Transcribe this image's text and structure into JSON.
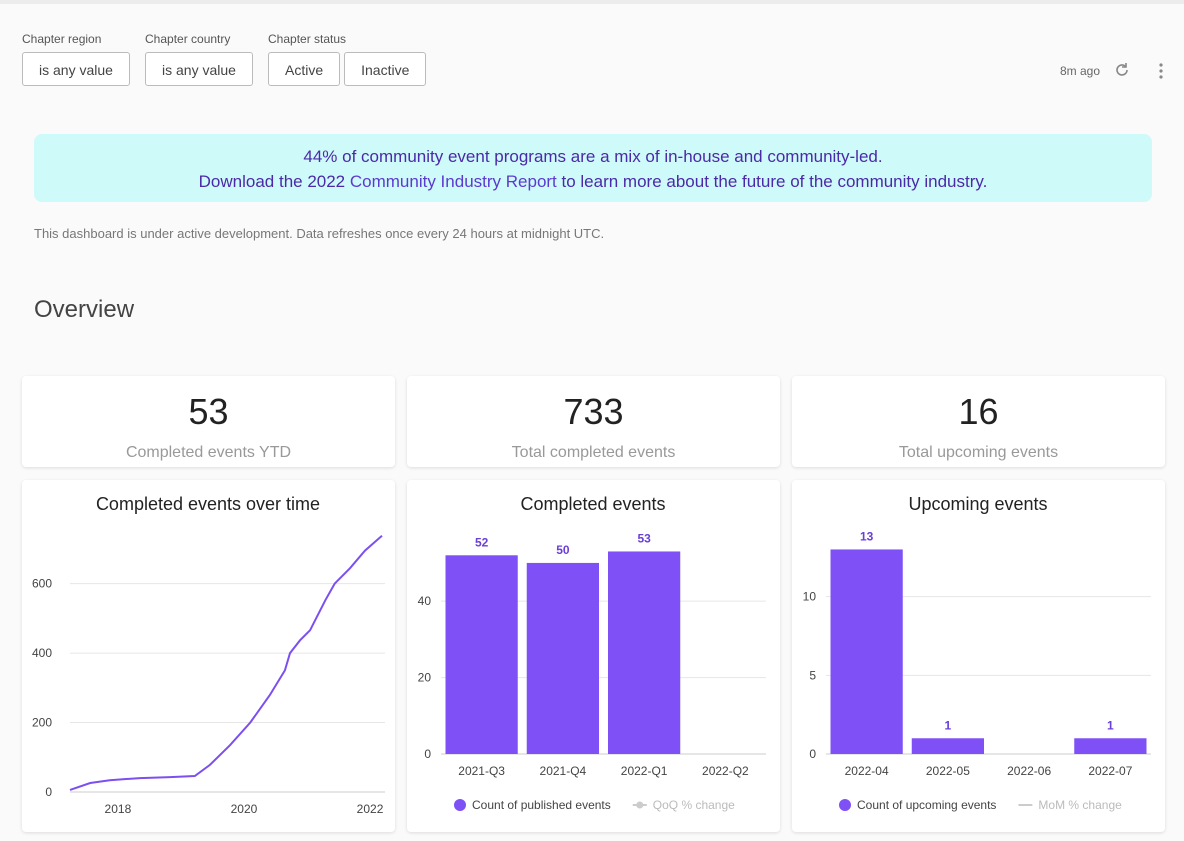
{
  "filters": [
    {
      "label": "Chapter region",
      "options": [
        "is any value"
      ]
    },
    {
      "label": "Chapter country",
      "options": [
        "is any value"
      ]
    },
    {
      "label": "Chapter status",
      "options": [
        "Active",
        "Inactive"
      ]
    }
  ],
  "refresh": "8m ago",
  "banner": {
    "line1": "44% of community event programs are a mix of in-house and community-led.",
    "line2_before": "Download the 2022 ",
    "link": "Community Industry Report",
    "line2_after": " to learn more about the future of the community industry."
  },
  "note": "This dashboard is under active development. Data refreshes once every 24 hours at midnight UTC.",
  "section_title": "Overview",
  "kpis": [
    {
      "value": 53,
      "label": "Completed events YTD"
    },
    {
      "value": 733,
      "label": "Total completed events"
    },
    {
      "value": 16,
      "label": "Total upcoming events"
    }
  ],
  "charts": [
    {
      "type": "line",
      "title": "Completed events over time",
      "x": [
        2017.24,
        2017.56,
        2017.87,
        2018.35,
        2018.83,
        2019.22,
        2019.46,
        2019.78,
        2020.1,
        2020.41,
        2020.65,
        2020.73,
        2020.89,
        2021.05,
        2021.29,
        2021.44,
        2021.68,
        2021.92,
        2022.19
      ],
      "values": [
        6,
        26,
        34,
        40,
        43,
        46,
        78,
        135,
        200,
        279,
        350,
        400,
        437,
        466,
        552,
        600,
        644,
        695,
        738
      ],
      "color": "#7b4ff0",
      "xlim": [
        2017.24,
        2022.19
      ],
      "xticks": [
        2018,
        2020,
        2022
      ],
      "ylim": [
        0,
        740
      ],
      "yticks": [
        0,
        200,
        400,
        600
      ],
      "grid": true
    },
    {
      "type": "bar",
      "title": "Completed events",
      "categories": [
        "2021-Q3",
        "2021-Q4",
        "2022-Q1",
        "2022-Q2"
      ],
      "series": [
        {
          "name": "Count of published events",
          "color": "#7f50f5",
          "values": [
            52,
            50,
            53,
            null
          ]
        },
        {
          "name": "QoQ % change",
          "color": "#cccccc",
          "values": [
            null,
            null,
            null,
            null
          ]
        }
      ],
      "ylim": [
        0,
        56
      ],
      "yticks": [
        0,
        20,
        40
      ],
      "grid": true
    },
    {
      "type": "bar",
      "title": "Upcoming events",
      "categories": [
        "2022-04",
        "2022-05",
        "2022-06",
        "2022-07"
      ],
      "series": [
        {
          "name": "Count of upcoming events",
          "color": "#7f50f5",
          "values": [
            13,
            1,
            null,
            1
          ]
        },
        {
          "name": "MoM % change",
          "color": "#cccccc",
          "values": [
            null,
            null,
            null,
            null
          ]
        }
      ],
      "ylim": [
        0,
        13.6
      ],
      "yticks": [
        0,
        5,
        10
      ],
      "grid": true
    }
  ]
}
